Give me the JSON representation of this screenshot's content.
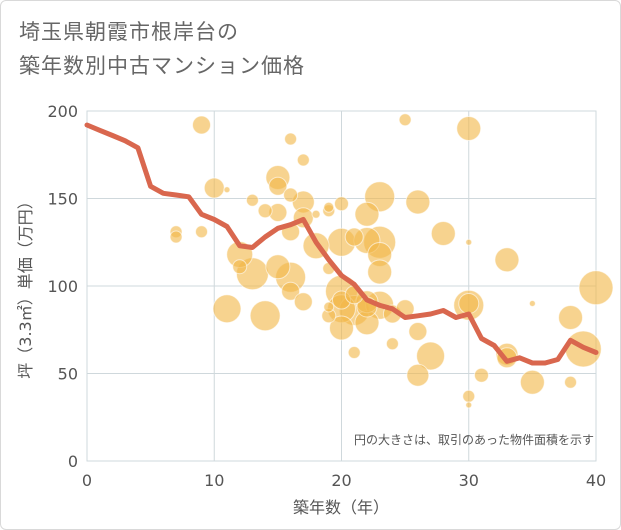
{
  "title": {
    "line1": "埼玉県朝霞市根岸台の",
    "line2": "築年数別中古マンション価格"
  },
  "colors": {
    "bubble": "#f2b84b",
    "line": "#d9674e",
    "grid": "#cfd8dc",
    "plot_bg": "#ffffff"
  },
  "chart_data": {
    "type": "scatter",
    "xlabel": "築年数（年）",
    "ylabel": "坪（3.3㎡）単価（万円）",
    "xlim": [
      0,
      40
    ],
    "ylim": [
      0,
      200
    ],
    "xticks": [
      "0",
      "10",
      "20",
      "30",
      "40"
    ],
    "yticks": [
      "0",
      "50",
      "100",
      "150",
      "200"
    ],
    "grid": true,
    "annotation": "円の大きさは、取引のあった物件面積を示す",
    "line_series": {
      "x": [
        0,
        1,
        2,
        3,
        4,
        5,
        6,
        7,
        8,
        9,
        10,
        11,
        12,
        13,
        14,
        15,
        16,
        17,
        18,
        19,
        20,
        21,
        22,
        23,
        24,
        25,
        26,
        27,
        28,
        29,
        30,
        31,
        32,
        33,
        34,
        35,
        36,
        37,
        38,
        39,
        40
      ],
      "y": [
        192,
        189,
        186,
        183,
        179,
        157,
        153,
        152,
        151,
        141,
        138,
        134,
        123,
        122,
        128,
        133,
        135,
        138,
        125,
        115,
        106,
        101,
        92,
        89,
        87,
        82,
        83,
        84,
        86,
        82,
        84,
        70,
        66,
        57,
        59,
        56,
        56,
        58,
        69,
        65,
        62
      ]
    },
    "bubbles": [
      {
        "x": 9,
        "y": 192,
        "r": 9
      },
      {
        "x": 16,
        "y": 184,
        "r": 6
      },
      {
        "x": 25,
        "y": 195,
        "r": 6
      },
      {
        "x": 30,
        "y": 190,
        "r": 12
      },
      {
        "x": 17,
        "y": 172,
        "r": 6
      },
      {
        "x": 10,
        "y": 156,
        "r": 10
      },
      {
        "x": 15,
        "y": 162,
        "r": 12
      },
      {
        "x": 15,
        "y": 157,
        "r": 9
      },
      {
        "x": 11,
        "y": 155,
        "r": 3
      },
      {
        "x": 16,
        "y": 152,
        "r": 7
      },
      {
        "x": 13,
        "y": 149,
        "r": 6
      },
      {
        "x": 17,
        "y": 148,
        "r": 11
      },
      {
        "x": 20,
        "y": 147,
        "r": 7
      },
      {
        "x": 23,
        "y": 151,
        "r": 15
      },
      {
        "x": 26,
        "y": 148,
        "r": 12
      },
      {
        "x": 14,
        "y": 143,
        "r": 7
      },
      {
        "x": 15,
        "y": 142,
        "r": 9
      },
      {
        "x": 18,
        "y": 141,
        "r": 4
      },
      {
        "x": 17,
        "y": 139,
        "r": 10
      },
      {
        "x": 19,
        "y": 145,
        "r": 5
      },
      {
        "x": 19,
        "y": 143,
        "r": 6
      },
      {
        "x": 22,
        "y": 141,
        "r": 12
      },
      {
        "x": 7,
        "y": 131,
        "r": 6
      },
      {
        "x": 7,
        "y": 128,
        "r": 6
      },
      {
        "x": 9,
        "y": 131,
        "r": 6
      },
      {
        "x": 16,
        "y": 131,
        "r": 9
      },
      {
        "x": 18,
        "y": 123,
        "r": 13
      },
      {
        "x": 20,
        "y": 125,
        "r": 14
      },
      {
        "x": 21,
        "y": 128,
        "r": 9
      },
      {
        "x": 22,
        "y": 126,
        "r": 13
      },
      {
        "x": 23,
        "y": 125,
        "r": 16
      },
      {
        "x": 23,
        "y": 118,
        "r": 12
      },
      {
        "x": 28,
        "y": 130,
        "r": 12
      },
      {
        "x": 30,
        "y": 125,
        "r": 3
      },
      {
        "x": 12,
        "y": 118,
        "r": 13
      },
      {
        "x": 12,
        "y": 111,
        "r": 7
      },
      {
        "x": 13,
        "y": 107,
        "r": 16
      },
      {
        "x": 15,
        "y": 111,
        "r": 12
      },
      {
        "x": 16,
        "y": 105,
        "r": 15
      },
      {
        "x": 16,
        "y": 97,
        "r": 9
      },
      {
        "x": 19,
        "y": 110,
        "r": 6
      },
      {
        "x": 23,
        "y": 108,
        "r": 12
      },
      {
        "x": 33,
        "y": 115,
        "r": 12
      },
      {
        "x": 11,
        "y": 87,
        "r": 14
      },
      {
        "x": 14,
        "y": 83,
        "r": 15
      },
      {
        "x": 17,
        "y": 91,
        "r": 9
      },
      {
        "x": 19,
        "y": 88,
        "r": 5
      },
      {
        "x": 19,
        "y": 83,
        "r": 7
      },
      {
        "x": 20,
        "y": 97,
        "r": 16
      },
      {
        "x": 20,
        "y": 92,
        "r": 9
      },
      {
        "x": 20,
        "y": 87,
        "r": 14
      },
      {
        "x": 21,
        "y": 95,
        "r": 9
      },
      {
        "x": 22,
        "y": 91,
        "r": 11
      },
      {
        "x": 22,
        "y": 88,
        "r": 10
      },
      {
        "x": 21,
        "y": 86,
        "r": 15
      },
      {
        "x": 22,
        "y": 79,
        "r": 12
      },
      {
        "x": 23,
        "y": 89,
        "r": 14
      },
      {
        "x": 24,
        "y": 84,
        "r": 9
      },
      {
        "x": 25,
        "y": 87,
        "r": 9
      },
      {
        "x": 20,
        "y": 76,
        "r": 12
      },
      {
        "x": 30,
        "y": 89,
        "r": 15
      },
      {
        "x": 30,
        "y": 90,
        "r": 10
      },
      {
        "x": 26,
        "y": 74,
        "r": 9
      },
      {
        "x": 24,
        "y": 67,
        "r": 6
      },
      {
        "x": 21,
        "y": 62,
        "r": 6
      },
      {
        "x": 27,
        "y": 60,
        "r": 14
      },
      {
        "x": 26,
        "y": 49,
        "r": 11
      },
      {
        "x": 31,
        "y": 49,
        "r": 7
      },
      {
        "x": 33,
        "y": 61,
        "r": 11
      },
      {
        "x": 33,
        "y": 59,
        "r": 10
      },
      {
        "x": 35,
        "y": 45,
        "r": 12
      },
      {
        "x": 35,
        "y": 90,
        "r": 3
      },
      {
        "x": 38,
        "y": 82,
        "r": 12
      },
      {
        "x": 38,
        "y": 45,
        "r": 6
      },
      {
        "x": 39,
        "y": 64,
        "r": 18
      },
      {
        "x": 40,
        "y": 99,
        "r": 17
      },
      {
        "x": 30,
        "y": 37,
        "r": 6
      },
      {
        "x": 30,
        "y": 32,
        "r": 3
      }
    ]
  }
}
